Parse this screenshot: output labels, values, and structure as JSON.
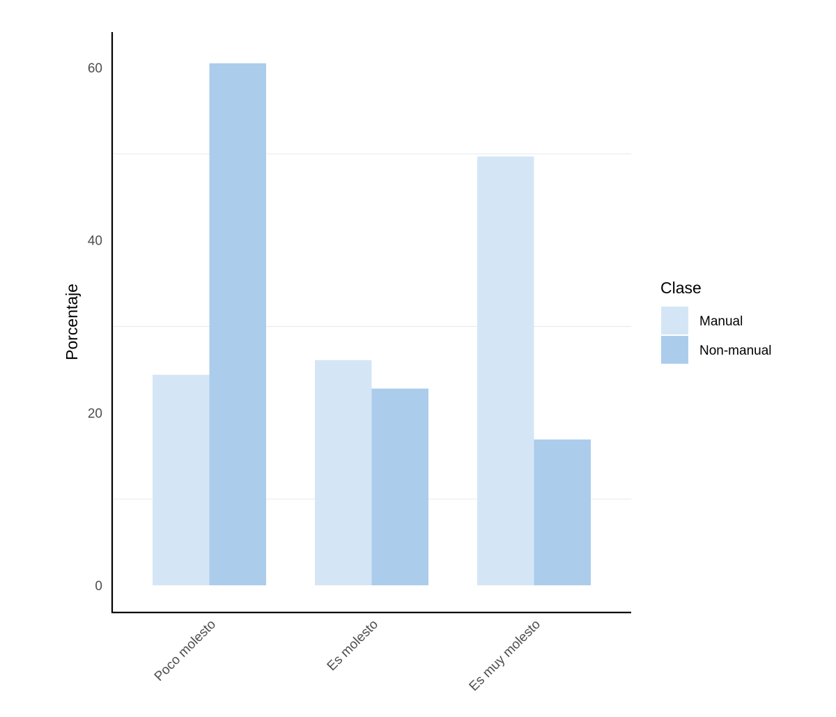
{
  "chart_data": {
    "type": "bar",
    "categories": [
      "Poco molesto",
      "Es molesto",
      "Es muy molesto"
    ],
    "series": [
      {
        "name": "Manual",
        "values": [
          24.4,
          26.1,
          49.7
        ],
        "color": "#d4e6f6"
      },
      {
        "name": "Non-manual",
        "values": [
          60.5,
          22.8,
          16.9
        ],
        "color": "#acccec"
      }
    ],
    "title": "",
    "xlabel": "",
    "ylabel": "Porcentaje",
    "ylim": [
      -3,
      64.5
    ],
    "yticks": [
      0,
      20,
      40,
      60
    ],
    "ytick_labels": [
      "0",
      "20",
      "40",
      "60"
    ],
    "grid_minor_y": [
      10,
      30,
      50
    ],
    "legend": {
      "title": "Clase",
      "position": "right"
    },
    "axis_color": "#000000",
    "grid_color": "#ebebeb"
  }
}
